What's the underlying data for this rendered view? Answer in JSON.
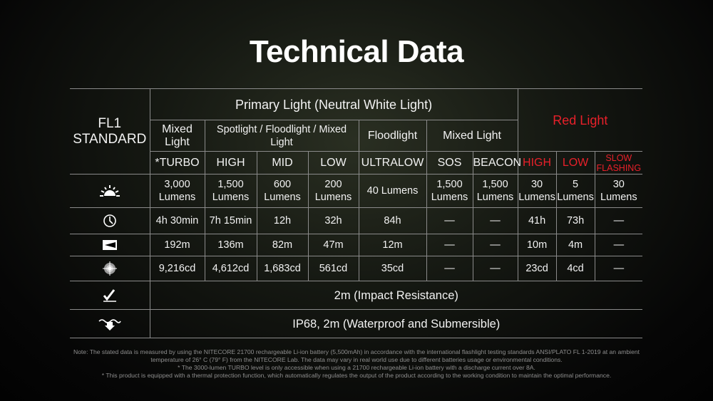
{
  "title": "Technical Data",
  "model_line1": "FL1",
  "model_line2": "STANDARD",
  "primary_header": "Primary Light (Neutral White Light)",
  "red_header": "Red Light",
  "groups": [
    "Mixed Light",
    "Spotlight / Floodlight / Mixed Light",
    "Floodlight",
    "Mixed Light"
  ],
  "modes": [
    "*TURBO",
    "HIGH",
    "MID",
    "LOW",
    "ULTRALOW",
    "SOS",
    "BEACON",
    "HIGH",
    "LOW",
    "SLOW FLASHING"
  ],
  "rows": {
    "output": {
      "icon": "brightness-icon",
      "values": [
        "3,000 Lumens",
        "1,500 Lumens",
        "600 Lumens",
        "200 Lumens",
        "40 Lumens",
        "1,500 Lumens",
        "1,500 Lumens",
        "30 Lumens",
        "5 Lumens",
        "30 Lumens"
      ]
    },
    "runtime": {
      "icon": "clock-icon",
      "values": [
        "4h 30min",
        "7h 15min",
        "12h",
        "32h",
        "84h",
        "—",
        "—",
        "41h",
        "73h",
        "—"
      ]
    },
    "distance": {
      "icon": "beam-distance-icon",
      "values": [
        "192m",
        "136m",
        "82m",
        "47m",
        "12m",
        "—",
        "—",
        "10m",
        "4m",
        "—"
      ]
    },
    "intensity": {
      "icon": "peak-intensity-icon",
      "values": [
        "9,216cd",
        "4,612cd",
        "1,683cd",
        "561cd",
        "35cd",
        "—",
        "—",
        "23cd",
        "4cd",
        "—"
      ]
    },
    "impact": {
      "icon": "impact-resistance-icon",
      "value": "2m (Impact Resistance)"
    },
    "waterproof": {
      "icon": "waterproof-icon",
      "value": "IP68, 2m (Waterproof and Submersible)"
    }
  },
  "colors": {
    "red": "#e8202a",
    "text": "#ffffff",
    "border": "#8a8a8a"
  },
  "notes": [
    "Note: The stated data is measured by using the NITECORE 21700 rechargeable Li-ion battery (5,500mAh) in accordance with the international flashlight testing standards ANSI/PLATO FL 1-2019 at an ambient temperature of 26° C (79° F) from the NITECORE Lab. The data may vary in real world use due to different batteries usage or environmental conditions.",
    "* The 3000-lumen TURBO level is only accessible when using a 21700 rechargeable Li-ion battery with a discharge current over 8A.",
    "* This product is equipped with a thermal protection function, which automatically regulates the output of the product according to the working condition to maintain the optimal performance."
  ]
}
